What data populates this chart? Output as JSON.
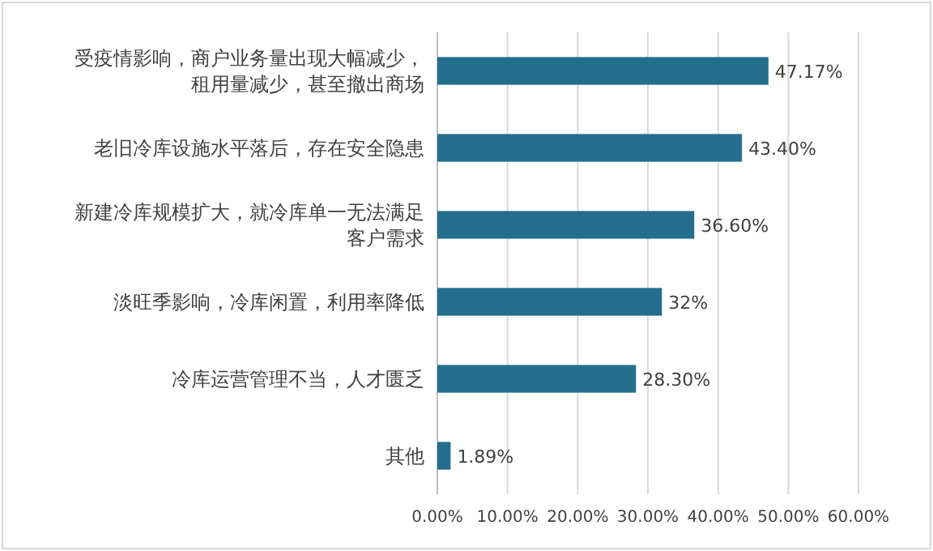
{
  "chart_data": {
    "type": "bar",
    "orientation": "horizontal",
    "categories": [
      "受疫情影响，商户业务量出现大幅减少，租用量减少，甚至撤出商场",
      "老旧冷库设施水平落后，存在安全隐患",
      "新建冷库规模扩大，就冷库单一无法满足客户需求",
      "淡旺季影响，冷库闲置，利用率降低",
      "冷库运营管理不当，人才匮乏",
      "其他"
    ],
    "values": [
      47.17,
      43.4,
      36.6,
      32,
      28.3,
      1.89
    ],
    "value_labels": [
      "47.17%",
      "43.40%",
      "36.60%",
      "32%",
      "28.30%",
      "1.89%"
    ],
    "color": "#236e8c",
    "xlim": [
      0,
      60
    ],
    "xticks": [
      {
        "value": 0,
        "label": "0.00%"
      },
      {
        "value": 10,
        "label": "10.00%"
      },
      {
        "value": 20,
        "label": "20.00%"
      },
      {
        "value": 30,
        "label": "30.00%"
      },
      {
        "value": 40,
        "label": "40.00%"
      },
      {
        "value": 50,
        "label": "50.00%"
      },
      {
        "value": 60,
        "label": "60.00%"
      }
    ],
    "grid": "x"
  }
}
